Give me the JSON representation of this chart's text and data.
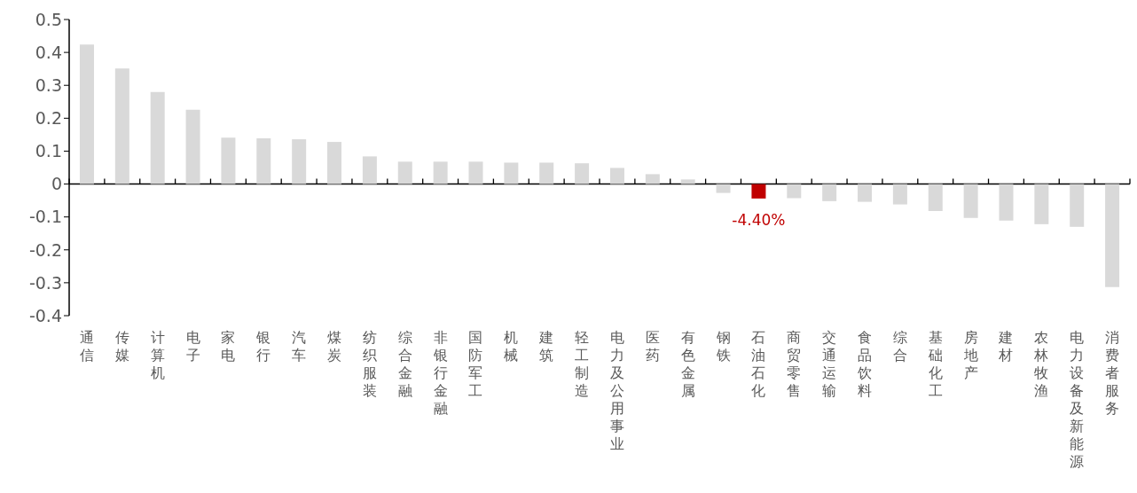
{
  "chart_data": {
    "type": "bar",
    "categories": [
      "通信",
      "传媒",
      "计算机",
      "电子",
      "家电",
      "银行",
      "汽车",
      "煤炭",
      "纺织服装",
      "综合金融",
      "非银行金融",
      "国防军工",
      "机械",
      "建筑",
      "轻工制造",
      "电力及公用事业",
      "医药",
      "有色金属",
      "钢铁",
      "石油石化",
      "商贸零售",
      "交通运输",
      "食品饮料",
      "综合",
      "基础化工",
      "房地产",
      "建材",
      "农林牧渔",
      "电力设备及新能源",
      "消费者服务"
    ],
    "values": [
      0.424,
      0.351,
      0.28,
      0.226,
      0.141,
      0.139,
      0.136,
      0.128,
      0.084,
      0.068,
      0.068,
      0.068,
      0.065,
      0.065,
      0.063,
      0.049,
      0.03,
      0.014,
      -0.027,
      -0.044,
      -0.043,
      -0.052,
      -0.054,
      -0.062,
      -0.082,
      -0.103,
      -0.111,
      -0.122,
      -0.13,
      -0.313
    ],
    "colors": [
      "#d9d9d9",
      "#d9d9d9",
      "#d9d9d9",
      "#d9d9d9",
      "#d9d9d9",
      "#d9d9d9",
      "#d9d9d9",
      "#d9d9d9",
      "#d9d9d9",
      "#d9d9d9",
      "#d9d9d9",
      "#d9d9d9",
      "#d9d9d9",
      "#d9d9d9",
      "#d9d9d9",
      "#d9d9d9",
      "#d9d9d9",
      "#d9d9d9",
      "#d9d9d9",
      "#c00000",
      "#d9d9d9",
      "#d9d9d9",
      "#d9d9d9",
      "#d9d9d9",
      "#d9d9d9",
      "#d9d9d9",
      "#d9d9d9",
      "#d9d9d9",
      "#d9d9d9",
      "#d9d9d9"
    ],
    "value_labels": [
      null,
      null,
      null,
      null,
      null,
      null,
      null,
      null,
      null,
      null,
      null,
      null,
      null,
      null,
      null,
      null,
      null,
      null,
      null,
      "-4.40%",
      null,
      null,
      null,
      null,
      null,
      null,
      null,
      null,
      null,
      null
    ],
    "ylim": [
      -0.4,
      0.5
    ],
    "yticks": [
      -0.4,
      -0.3,
      -0.2,
      -0.1,
      0,
      0.1,
      0.2,
      0.3,
      0.4,
      0.5
    ],
    "legend": false
  }
}
